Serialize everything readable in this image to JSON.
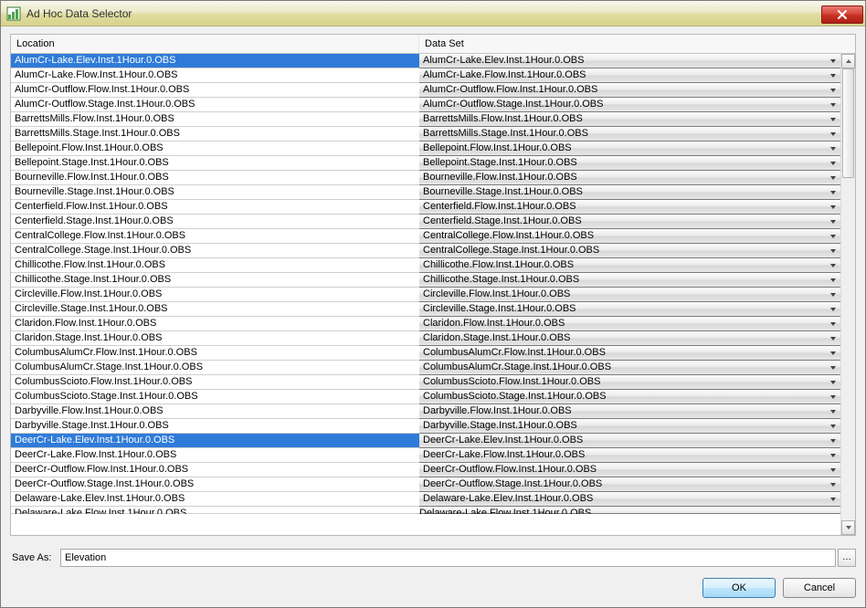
{
  "window": {
    "title": "Ad Hoc Data Selector"
  },
  "headers": {
    "location": "Location",
    "data_set": "Data Set"
  },
  "table": {
    "scroll": {
      "thumb_top": 0,
      "thumb_height": 120
    },
    "rows": [
      {
        "loc": "AlumCr-Lake.Elev.Inst.1Hour.0.OBS",
        "ds": "AlumCr-Lake.Elev.Inst.1Hour.0.OBS",
        "selected": true
      },
      {
        "loc": "AlumCr-Lake.Flow.Inst.1Hour.0.OBS",
        "ds": "AlumCr-Lake.Flow.Inst.1Hour.0.OBS",
        "selected": false
      },
      {
        "loc": "AlumCr-Outflow.Flow.Inst.1Hour.0.OBS",
        "ds": "AlumCr-Outflow.Flow.Inst.1Hour.0.OBS",
        "selected": false
      },
      {
        "loc": "AlumCr-Outflow.Stage.Inst.1Hour.0.OBS",
        "ds": "AlumCr-Outflow.Stage.Inst.1Hour.0.OBS",
        "selected": false
      },
      {
        "loc": "BarrettsMills.Flow.Inst.1Hour.0.OBS",
        "ds": "BarrettsMills.Flow.Inst.1Hour.0.OBS",
        "selected": false
      },
      {
        "loc": "BarrettsMills.Stage.Inst.1Hour.0.OBS",
        "ds": "BarrettsMills.Stage.Inst.1Hour.0.OBS",
        "selected": false
      },
      {
        "loc": "Bellepoint.Flow.Inst.1Hour.0.OBS",
        "ds": "Bellepoint.Flow.Inst.1Hour.0.OBS",
        "selected": false
      },
      {
        "loc": "Bellepoint.Stage.Inst.1Hour.0.OBS",
        "ds": "Bellepoint.Stage.Inst.1Hour.0.OBS",
        "selected": false
      },
      {
        "loc": "Bourneville.Flow.Inst.1Hour.0.OBS",
        "ds": "Bourneville.Flow.Inst.1Hour.0.OBS",
        "selected": false
      },
      {
        "loc": "Bourneville.Stage.Inst.1Hour.0.OBS",
        "ds": "Bourneville.Stage.Inst.1Hour.0.OBS",
        "selected": false
      },
      {
        "loc": "Centerfield.Flow.Inst.1Hour.0.OBS",
        "ds": "Centerfield.Flow.Inst.1Hour.0.OBS",
        "selected": false
      },
      {
        "loc": "Centerfield.Stage.Inst.1Hour.0.OBS",
        "ds": "Centerfield.Stage.Inst.1Hour.0.OBS",
        "selected": false
      },
      {
        "loc": "CentralCollege.Flow.Inst.1Hour.0.OBS",
        "ds": "CentralCollege.Flow.Inst.1Hour.0.OBS",
        "selected": false
      },
      {
        "loc": "CentralCollege.Stage.Inst.1Hour.0.OBS",
        "ds": "CentralCollege.Stage.Inst.1Hour.0.OBS",
        "selected": false
      },
      {
        "loc": "Chillicothe.Flow.Inst.1Hour.0.OBS",
        "ds": "Chillicothe.Flow.Inst.1Hour.0.OBS",
        "selected": false
      },
      {
        "loc": "Chillicothe.Stage.Inst.1Hour.0.OBS",
        "ds": "Chillicothe.Stage.Inst.1Hour.0.OBS",
        "selected": false
      },
      {
        "loc": "Circleville.Flow.Inst.1Hour.0.OBS",
        "ds": "Circleville.Flow.Inst.1Hour.0.OBS",
        "selected": false
      },
      {
        "loc": "Circleville.Stage.Inst.1Hour.0.OBS",
        "ds": "Circleville.Stage.Inst.1Hour.0.OBS",
        "selected": false
      },
      {
        "loc": "Claridon.Flow.Inst.1Hour.0.OBS",
        "ds": "Claridon.Flow.Inst.1Hour.0.OBS",
        "selected": false
      },
      {
        "loc": "Claridon.Stage.Inst.1Hour.0.OBS",
        "ds": "Claridon.Stage.Inst.1Hour.0.OBS",
        "selected": false
      },
      {
        "loc": "ColumbusAlumCr.Flow.Inst.1Hour.0.OBS",
        "ds": "ColumbusAlumCr.Flow.Inst.1Hour.0.OBS",
        "selected": false
      },
      {
        "loc": "ColumbusAlumCr.Stage.Inst.1Hour.0.OBS",
        "ds": "ColumbusAlumCr.Stage.Inst.1Hour.0.OBS",
        "selected": false
      },
      {
        "loc": "ColumbusScioto.Flow.Inst.1Hour.0.OBS",
        "ds": "ColumbusScioto.Flow.Inst.1Hour.0.OBS",
        "selected": false
      },
      {
        "loc": "ColumbusScioto.Stage.Inst.1Hour.0.OBS",
        "ds": "ColumbusScioto.Stage.Inst.1Hour.0.OBS",
        "selected": false
      },
      {
        "loc": "Darbyville.Flow.Inst.1Hour.0.OBS",
        "ds": "Darbyville.Flow.Inst.1Hour.0.OBS",
        "selected": false
      },
      {
        "loc": "Darbyville.Stage.Inst.1Hour.0.OBS",
        "ds": "Darbyville.Stage.Inst.1Hour.0.OBS",
        "selected": false
      },
      {
        "loc": "DeerCr-Lake.Elev.Inst.1Hour.0.OBS",
        "ds": "DeerCr-Lake.Elev.Inst.1Hour.0.OBS",
        "selected": true
      },
      {
        "loc": "DeerCr-Lake.Flow.Inst.1Hour.0.OBS",
        "ds": "DeerCr-Lake.Flow.Inst.1Hour.0.OBS",
        "selected": false
      },
      {
        "loc": "DeerCr-Outflow.Flow.Inst.1Hour.0.OBS",
        "ds": "DeerCr-Outflow.Flow.Inst.1Hour.0.OBS",
        "selected": false
      },
      {
        "loc": "DeerCr-Outflow.Stage.Inst.1Hour.0.OBS",
        "ds": "DeerCr-Outflow.Stage.Inst.1Hour.0.OBS",
        "selected": false
      },
      {
        "loc": "Delaware-Lake.Elev.Inst.1Hour.0.OBS",
        "ds": "Delaware-Lake.Elev.Inst.1Hour.0.OBS",
        "selected": false
      }
    ],
    "partial_row": {
      "loc": "Delaware-Lake.Flow.Inst.1Hour.0.OBS",
      "ds": "Delaware-Lake.Flow.Inst.1Hour.0.OBS"
    }
  },
  "saveas": {
    "label": "Save As:",
    "value": "Elevation",
    "browse": "…"
  },
  "buttons": {
    "ok": "OK",
    "cancel": "Cancel"
  }
}
